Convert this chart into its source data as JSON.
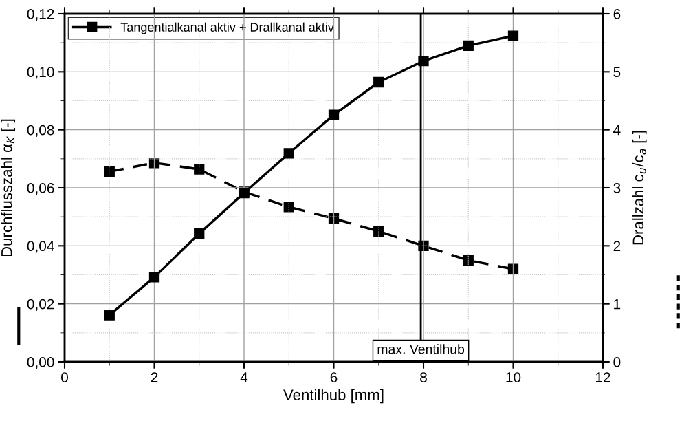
{
  "chart_data": {
    "type": "line",
    "xlabel": "Ventilhub [mm]",
    "ylabel": "Durchflusszahl α$_{K}$ [-]",
    "y2label": "Drallzahl c$_{u}$/c$_{a}$ [-]",
    "x": [
      1,
      2,
      3,
      4,
      5,
      6,
      7,
      8,
      9,
      10
    ],
    "series": [
      {
        "name": "Tangentialkanal aktiv + Drallkanal aktiv",
        "color": "#000000",
        "line_style": "solid",
        "marker": "square",
        "values": [
          0.0161,
          0.0292,
          0.0442,
          0.0582,
          0.0719,
          0.0851,
          0.0964,
          0.1037,
          0.109,
          0.1124
        ]
      },
      {
        "color": "#000000",
        "line_style": "dashed",
        "marker": "square",
        "axis": "y2",
        "values": [
          3.28,
          3.43,
          3.32,
          2.93,
          2.67,
          2.47,
          2.25,
          2.0,
          1.75,
          1.6
        ]
      }
    ],
    "xlim": [
      0,
      12
    ],
    "xticks": [
      0,
      2,
      4,
      6,
      8,
      10,
      12
    ],
    "ylim": [
      0,
      0.12
    ],
    "yticks": [
      {
        "value": 0,
        "label": "0,00"
      },
      {
        "value": 0.02,
        "label": "0,02"
      },
      {
        "value": 0.04,
        "label": "0,04"
      },
      {
        "value": 0.06,
        "label": "0,06"
      },
      {
        "value": 0.08,
        "label": "0,08"
      },
      {
        "value": 0.1,
        "label": "0,10"
      },
      {
        "value": 0.12,
        "label": "0,12"
      }
    ],
    "y2lim": [
      0,
      6
    ],
    "y2ticks": [
      0,
      1,
      2,
      3,
      4,
      5,
      6
    ],
    "ref_lines": [
      {
        "axis": "x",
        "value": 7.94,
        "label": "max. Ventilhub",
        "color": "#000000",
        "line_style": "solid"
      }
    ],
    "grid": true,
    "legend": "top left"
  }
}
